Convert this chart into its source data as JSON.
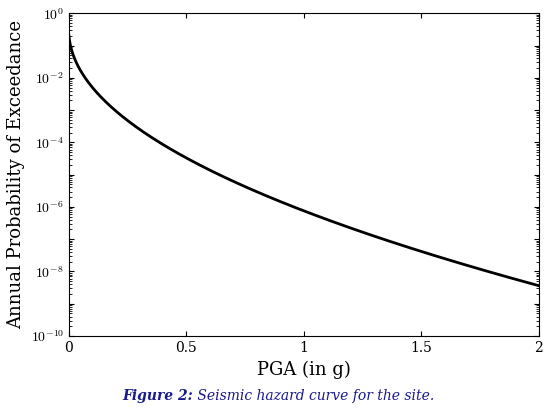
{
  "xlabel": "PGA (in g)",
  "ylabel": "Annual Probability of Exceedance",
  "caption_bold": "Figure 2:",
  "caption_normal": " Seismic hazard curve for the site.",
  "xlim": [
    0,
    2
  ],
  "ylim_log_min": -10,
  "ylim_log_max": 0,
  "x_start": 0.001,
  "x_end": 2.0,
  "n_points": 1000,
  "hazard_A": 0.3,
  "hazard_k": 12.89,
  "hazard_n": 0.5,
  "curve_color": "#000000",
  "curve_linewidth": 2.0,
  "bg_color": "#ffffff",
  "tick_fontsize": 10,
  "label_fontsize": 13,
  "caption_fontsize": 10,
  "caption_color": "#1a1a8c",
  "xticks": [
    0,
    0.5,
    1,
    1.5,
    2
  ],
  "xtick_labels": [
    "0",
    "0.5",
    "1",
    "1.5",
    "2"
  ],
  "ytick_exponents": [
    0,
    -2,
    -4,
    -6,
    -8,
    -10
  ]
}
